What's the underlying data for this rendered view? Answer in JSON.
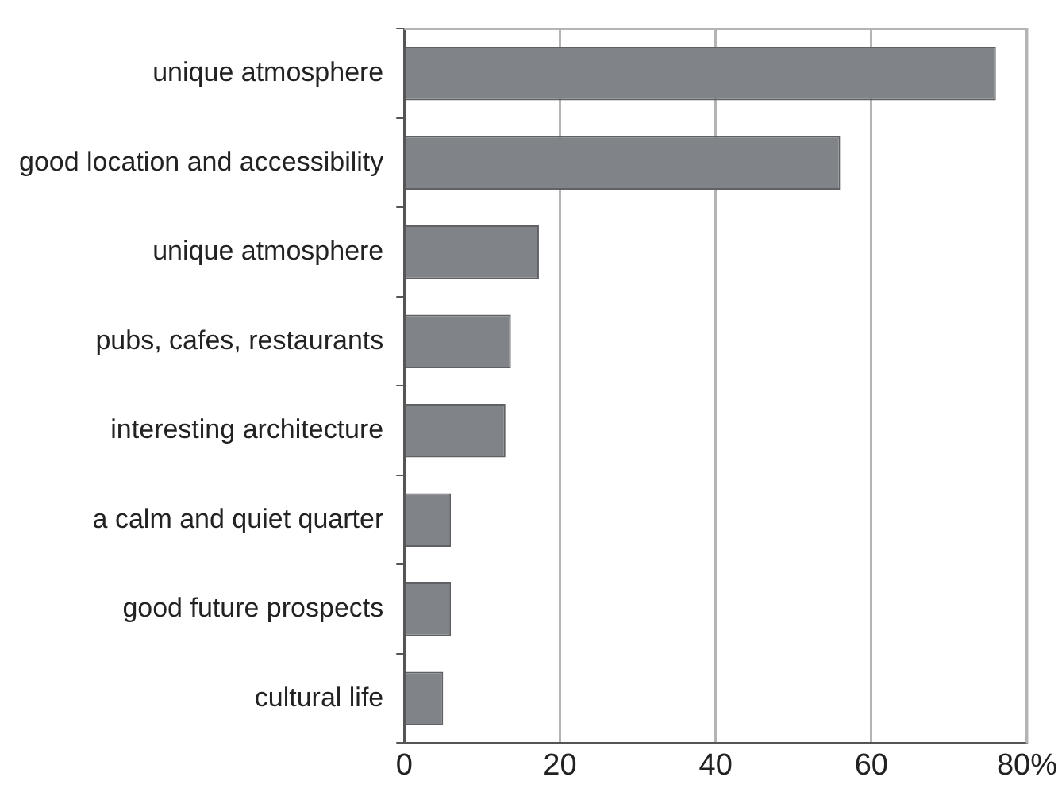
{
  "chart_data": {
    "type": "bar",
    "orientation": "horizontal",
    "categories": [
      "unique atmosphere",
      "good location and accessibility",
      "unique atmosphere",
      "pubs, cafes, restaurants",
      "interesting architecture",
      "a calm and quiet quarter",
      "good future prospects",
      "cultural life"
    ],
    "values": [
      76,
      56,
      17.3,
      13.7,
      13,
      6,
      6,
      5
    ],
    "color": "#808388",
    "xlim": [
      0,
      80
    ],
    "xticks": [
      0,
      20,
      40,
      60,
      {
        "value": 80,
        "label": "80%"
      }
    ],
    "grid": "x",
    "legend": false
  }
}
